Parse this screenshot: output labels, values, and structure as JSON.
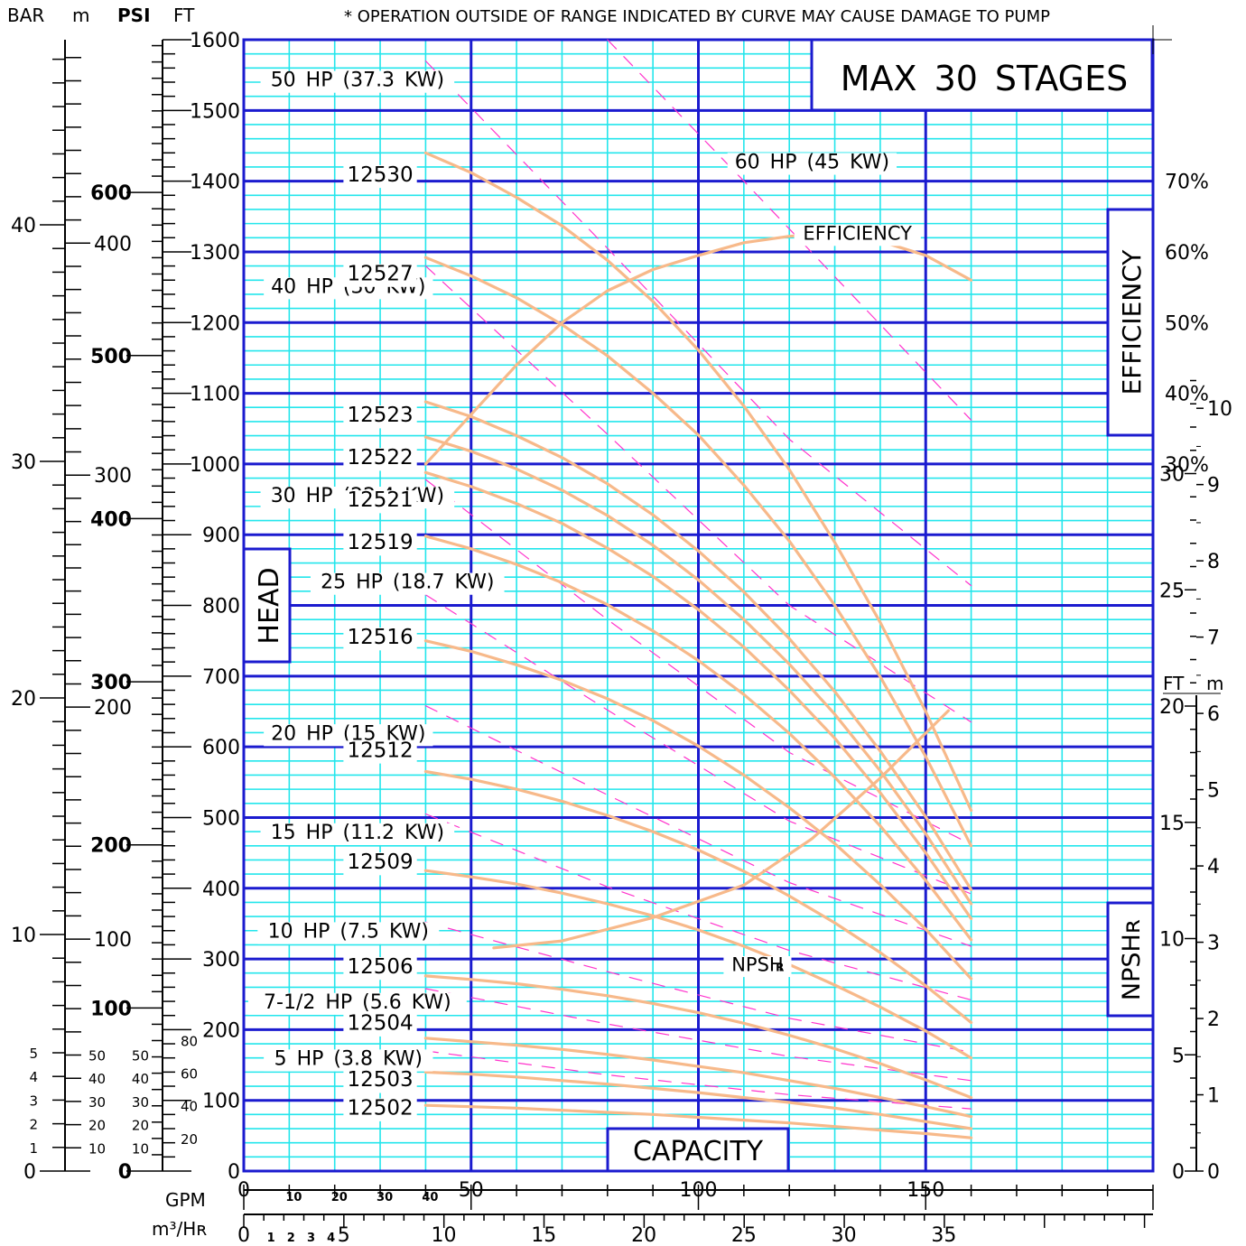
{
  "chart_data": {
    "type": "line",
    "note": "* OPERATION OUTSIDE OF RANGE INDICATED BY CURVE MAY CAUSE DAMAGE TO PUMP",
    "stages_label": "MAX 30 STAGES",
    "xlabel": "CAPACITY",
    "ylabel": "HEAD",
    "xlim": [
      0,
      200
    ],
    "ylim": [
      0,
      1600
    ],
    "x_ticks": [
      "0",
      "50",
      "100",
      "150"
    ],
    "y_ticks": [
      "0",
      "100",
      "200",
      "300",
      "400",
      "500",
      "600",
      "700",
      "800",
      "900",
      "1000",
      "1100",
      "1200",
      "1300",
      "1400",
      "1500",
      "1600"
    ],
    "units": {
      "gpm": "GPM",
      "m3hr": "m³/Hʀ",
      "ft": "FT",
      "m": "m",
      "bar": "BAR",
      "psi": "PSI"
    },
    "m3hr_ticks": [
      {
        "v": "0",
        "gpm": 0
      },
      {
        "v": "1",
        "gpm": 4.4
      },
      {
        "v": "2",
        "gpm": 8.8
      },
      {
        "v": "3",
        "gpm": 13.2
      },
      {
        "v": "4",
        "gpm": 17.6
      },
      {
        "v": "5",
        "gpm": 22
      },
      {
        "v": "10",
        "gpm": 44
      },
      {
        "v": "15",
        "gpm": 66
      },
      {
        "v": "20",
        "gpm": 88
      },
      {
        "v": "25",
        "gpm": 110
      },
      {
        "v": "30",
        "gpm": 132
      },
      {
        "v": "35",
        "gpm": 154
      }
    ],
    "gpm_small_ticks": [
      "10",
      "20",
      "30",
      "40"
    ],
    "bar_ticks": [
      "0",
      "1",
      "2",
      "3",
      "4",
      "5",
      "10",
      "20",
      "30",
      "40"
    ],
    "m_ticks": [
      "10",
      "20",
      "30",
      "40",
      "50",
      "100",
      "200",
      "300",
      "400"
    ],
    "psi_ticks": [
      "0",
      "100",
      "200",
      "300",
      "400",
      "500",
      "600"
    ],
    "psi_small_ticks": [
      "20",
      "40",
      "60",
      "80"
    ],
    "m_small_ticks": [
      "10",
      "20",
      "30",
      "40",
      "50"
    ],
    "efficiency": {
      "label": "EFFICIENCY",
      "box_label": "EFFICIENCY",
      "ticks": [
        "30%",
        "40%",
        "50%",
        "60%",
        "70%"
      ],
      "points": [
        [
          40,
          30
        ],
        [
          50,
          37
        ],
        [
          60,
          44
        ],
        [
          70,
          50
        ],
        [
          80,
          54.5
        ],
        [
          90,
          57.5
        ],
        [
          100,
          59.5
        ],
        [
          110,
          61.3
        ],
        [
          120,
          62.2
        ],
        [
          128,
          62.5
        ],
        [
          140,
          61.5
        ],
        [
          150,
          59.5
        ],
        [
          160,
          56
        ]
      ]
    },
    "npsh": {
      "label": "NPSH",
      "sub": "R",
      "box_label": "NPSHʀ",
      "ft_ticks": [
        "0",
        "5",
        "10",
        "15",
        "20",
        "25",
        "30"
      ],
      "m_ticks": [
        "0",
        "1",
        "2",
        "3",
        "4",
        "5",
        "6",
        "7",
        "8",
        "9",
        "10"
      ],
      "points": [
        [
          55,
          9.6
        ],
        [
          70,
          9.9
        ],
        [
          90,
          10.9
        ],
        [
          110,
          12.3
        ],
        [
          125,
          14.3
        ],
        [
          140,
          16.9
        ],
        [
          155,
          19.8
        ]
      ]
    },
    "hp_labels": [
      {
        "text": "50 HP (37.3 KW)",
        "x": 25,
        "y": 1534
      },
      {
        "text": "60 HP (45 KW)",
        "x": 125,
        "y": 1418
      },
      {
        "text": "40 HP (30 KW)",
        "x": 23,
        "y": 1242
      },
      {
        "text": "30 HP (22.4 KW)",
        "x": 25,
        "y": 946
      },
      {
        "text": "25 HP (18.7 KW)",
        "x": 36,
        "y": 824
      },
      {
        "text": "20 HP (15 KW)",
        "x": 23,
        "y": 610
      },
      {
        "text": "15 HP (11.2 KW)",
        "x": 25,
        "y": 470
      },
      {
        "text": "10 HP (7.5 KW)",
        "x": 23,
        "y": 330
      },
      {
        "text": "7-1/2 HP (5.6 KW)",
        "x": 25,
        "y": 230
      },
      {
        "text": "5 HP (3.8 KW)",
        "x": 23,
        "y": 150
      }
    ],
    "hp_lines": [
      [
        [
          40,
          1570
        ],
        [
          80,
          1305
        ],
        [
          120,
          1035
        ],
        [
          160,
          828
        ]
      ],
      [
        [
          80,
          1600
        ],
        [
          110,
          1400
        ],
        [
          160,
          1062
        ]
      ],
      [
        [
          40,
          1280
        ],
        [
          80,
          1042
        ],
        [
          120,
          800
        ],
        [
          160,
          635
        ]
      ],
      [
        [
          40,
          978
        ],
        [
          80,
          780
        ],
        [
          120,
          592
        ],
        [
          160,
          462
        ]
      ],
      [
        [
          40,
          815
        ],
        [
          80,
          652
        ],
        [
          120,
          495
        ],
        [
          160,
          392
        ]
      ],
      [
        [
          40,
          658
        ],
        [
          80,
          532
        ],
        [
          120,
          408
        ],
        [
          160,
          318
        ]
      ],
      [
        [
          40,
          505
        ],
        [
          80,
          402
        ],
        [
          120,
          312
        ],
        [
          160,
          242
        ]
      ],
      [
        [
          40,
          352
        ],
        [
          80,
          282
        ],
        [
          120,
          216
        ],
        [
          160,
          168
        ]
      ],
      [
        [
          40,
          258
        ],
        [
          80,
          208
        ],
        [
          120,
          162
        ],
        [
          160,
          128
        ]
      ],
      [
        [
          40,
          170
        ],
        [
          80,
          136
        ],
        [
          120,
          108
        ],
        [
          160,
          88
        ]
      ]
    ],
    "series": [
      {
        "name": "12530",
        "label_x": 30,
        "label_y": 1410,
        "points": [
          [
            40,
            1440
          ],
          [
            50,
            1412
          ],
          [
            60,
            1377
          ],
          [
            70,
            1337
          ],
          [
            80,
            1288
          ],
          [
            90,
            1230
          ],
          [
            100,
            1161
          ],
          [
            110,
            1082
          ],
          [
            120,
            992
          ],
          [
            130,
            889
          ],
          [
            140,
            776
          ],
          [
            150,
            650
          ],
          [
            160,
            510
          ]
        ]
      },
      {
        "name": "12527",
        "label_x": 30,
        "label_y": 1270,
        "points": [
          [
            40,
            1292
          ],
          [
            50,
            1266
          ],
          [
            60,
            1235
          ],
          [
            70,
            1197
          ],
          [
            80,
            1153
          ],
          [
            90,
            1100
          ],
          [
            100,
            1041
          ],
          [
            110,
            970
          ],
          [
            120,
            891
          ],
          [
            130,
            800
          ],
          [
            140,
            699
          ],
          [
            150,
            586
          ],
          [
            160,
            460
          ]
        ]
      },
      {
        "name": "12523",
        "label_x": 30,
        "label_y": 1070,
        "points": [
          [
            40,
            1088
          ],
          [
            50,
            1067
          ],
          [
            60,
            1040
          ],
          [
            70,
            1009
          ],
          [
            80,
            972
          ],
          [
            90,
            928
          ],
          [
            100,
            877
          ],
          [
            110,
            819
          ],
          [
            120,
            753
          ],
          [
            130,
            678
          ],
          [
            140,
            594
          ],
          [
            150,
            501
          ],
          [
            160,
            398
          ]
        ]
      },
      {
        "name": "12522",
        "label_x": 30,
        "label_y": 1010,
        "points": [
          [
            40,
            1038
          ],
          [
            50,
            1018
          ],
          [
            60,
            993
          ],
          [
            70,
            963
          ],
          [
            80,
            927
          ],
          [
            90,
            885
          ],
          [
            100,
            836
          ],
          [
            110,
            780
          ],
          [
            120,
            717
          ],
          [
            130,
            646
          ],
          [
            140,
            566
          ],
          [
            150,
            477
          ],
          [
            160,
            378
          ]
        ]
      },
      {
        "name": "12521",
        "label_x": 30,
        "label_y": 950,
        "points": [
          [
            40,
            988
          ],
          [
            50,
            968
          ],
          [
            60,
            944
          ],
          [
            70,
            916
          ],
          [
            80,
            881
          ],
          [
            90,
            841
          ],
          [
            100,
            794
          ],
          [
            110,
            741
          ],
          [
            120,
            680
          ],
          [
            130,
            612
          ],
          [
            140,
            535
          ],
          [
            150,
            450
          ],
          [
            160,
            357
          ]
        ]
      },
      {
        "name": "12519",
        "label_x": 30,
        "label_y": 890,
        "points": [
          [
            40,
            898
          ],
          [
            50,
            880
          ],
          [
            60,
            858
          ],
          [
            70,
            832
          ],
          [
            80,
            801
          ],
          [
            90,
            764
          ],
          [
            100,
            722
          ],
          [
            110,
            674
          ],
          [
            120,
            619
          ],
          [
            130,
            557
          ],
          [
            140,
            488
          ],
          [
            150,
            411
          ],
          [
            160,
            327
          ]
        ]
      },
      {
        "name": "12516",
        "label_x": 30,
        "label_y": 756,
        "points": [
          [
            40,
            750
          ],
          [
            50,
            735
          ],
          [
            60,
            716
          ],
          [
            70,
            694
          ],
          [
            80,
            668
          ],
          [
            90,
            637
          ],
          [
            100,
            601
          ],
          [
            110,
            560
          ],
          [
            120,
            514
          ],
          [
            130,
            463
          ],
          [
            140,
            405
          ],
          [
            150,
            342
          ],
          [
            160,
            272
          ]
        ]
      },
      {
        "name": "12512",
        "label_x": 30,
        "label_y": 596,
        "points": [
          [
            40,
            565
          ],
          [
            50,
            554
          ],
          [
            60,
            540
          ],
          [
            70,
            523
          ],
          [
            80,
            503
          ],
          [
            90,
            480
          ],
          [
            100,
            454
          ],
          [
            110,
            424
          ],
          [
            120,
            389
          ],
          [
            130,
            351
          ],
          [
            140,
            309
          ],
          [
            150,
            262
          ],
          [
            160,
            210
          ]
        ]
      },
      {
        "name": "12509",
        "label_x": 30,
        "label_y": 438,
        "points": [
          [
            40,
            425
          ],
          [
            50,
            416
          ],
          [
            60,
            406
          ],
          [
            70,
            393
          ],
          [
            80,
            378
          ],
          [
            90,
            361
          ],
          [
            100,
            341
          ],
          [
            110,
            318
          ],
          [
            120,
            292
          ],
          [
            130,
            263
          ],
          [
            140,
            232
          ],
          [
            150,
            198
          ],
          [
            160,
            160
          ]
        ]
      },
      {
        "name": "12506",
        "label_x": 30,
        "label_y": 290,
        "points": [
          [
            40,
            276
          ],
          [
            50,
            271
          ],
          [
            60,
            265
          ],
          [
            70,
            257
          ],
          [
            80,
            248
          ],
          [
            90,
            237
          ],
          [
            100,
            224
          ],
          [
            110,
            209
          ],
          [
            120,
            192
          ],
          [
            130,
            173
          ],
          [
            140,
            152
          ],
          [
            150,
            129
          ],
          [
            160,
            104
          ]
        ]
      },
      {
        "name": "12504",
        "label_x": 30,
        "label_y": 210,
        "points": [
          [
            40,
            188
          ],
          [
            50,
            183
          ],
          [
            60,
            178
          ],
          [
            70,
            172
          ],
          [
            80,
            165
          ],
          [
            90,
            157
          ],
          [
            100,
            148
          ],
          [
            110,
            139
          ],
          [
            120,
            128
          ],
          [
            130,
            117
          ],
          [
            140,
            104
          ],
          [
            150,
            91
          ],
          [
            160,
            77
          ]
        ]
      },
      {
        "name": "12503",
        "label_x": 30,
        "label_y": 130,
        "points": [
          [
            40,
            140
          ],
          [
            50,
            137
          ],
          [
            60,
            133
          ],
          [
            70,
            128
          ],
          [
            80,
            123
          ],
          [
            90,
            117
          ],
          [
            100,
            111
          ],
          [
            110,
            104
          ],
          [
            120,
            97
          ],
          [
            130,
            89
          ],
          [
            140,
            80
          ],
          [
            150,
            70
          ],
          [
            160,
            60
          ]
        ]
      },
      {
        "name": "12502",
        "label_x": 30,
        "label_y": 90,
        "points": [
          [
            40,
            93
          ],
          [
            50,
            91
          ],
          [
            60,
            89
          ],
          [
            70,
            86
          ],
          [
            80,
            83
          ],
          [
            90,
            80
          ],
          [
            100,
            76
          ],
          [
            110,
            72
          ],
          [
            120,
            68
          ],
          [
            130,
            63
          ],
          [
            140,
            58
          ],
          [
            150,
            53
          ],
          [
            160,
            47
          ]
        ]
      }
    ],
    "grid": true,
    "colors": {
      "major_grid": "#1b1bcf",
      "minor_grid": "#23e6ec",
      "curve": "#f7b98a",
      "hp_line": "#ff33cc",
      "axis": "#000000"
    }
  }
}
